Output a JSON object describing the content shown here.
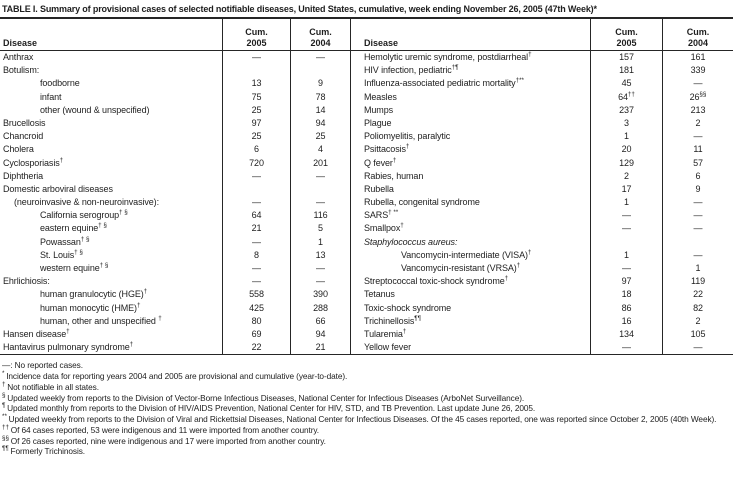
{
  "title": "TABLE I. Summary of provisional cases of selected notifiable diseases, United States, cumulative, week ending November 26, 2005 (47th Week)*",
  "header": {
    "disease_left": "Disease",
    "disease_right": "Disease",
    "cum": "Cum.",
    "year_2005": "2005",
    "year_2004": "2004"
  },
  "table": {
    "left_rows": [
      {
        "n": "Anthrax",
        "s": "",
        "i": 0,
        "it": false,
        "v1": "—",
        "s1": "",
        "v2": "—",
        "s2": ""
      },
      {
        "n": "Botulism:",
        "s": "",
        "i": 0,
        "it": false,
        "v1": "",
        "s1": "",
        "v2": "",
        "s2": ""
      },
      {
        "n": "foodborne",
        "s": "",
        "i": 2,
        "it": false,
        "v1": "13",
        "s1": "",
        "v2": "9",
        "s2": ""
      },
      {
        "n": "infant",
        "s": "",
        "i": 2,
        "it": false,
        "v1": "75",
        "s1": "",
        "v2": "78",
        "s2": ""
      },
      {
        "n": "other (wound & unspecified)",
        "s": "",
        "i": 2,
        "it": false,
        "v1": "25",
        "s1": "",
        "v2": "14",
        "s2": ""
      },
      {
        "n": "Brucellosis",
        "s": "",
        "i": 0,
        "it": false,
        "v1": "97",
        "s1": "",
        "v2": "94",
        "s2": ""
      },
      {
        "n": "Chancroid",
        "s": "",
        "i": 0,
        "it": false,
        "v1": "25",
        "s1": "",
        "v2": "25",
        "s2": ""
      },
      {
        "n": "Cholera",
        "s": "",
        "i": 0,
        "it": false,
        "v1": "6",
        "s1": "",
        "v2": "4",
        "s2": ""
      },
      {
        "n": "Cyclosporiasis",
        "s": "†",
        "i": 0,
        "it": false,
        "v1": "720",
        "s1": "",
        "v2": "201",
        "s2": ""
      },
      {
        "n": "Diphtheria",
        "s": "",
        "i": 0,
        "it": false,
        "v1": "—",
        "s1": "",
        "v2": "—",
        "s2": ""
      },
      {
        "n": "Domestic arboviral diseases",
        "s": "",
        "i": 0,
        "it": false,
        "v1": "",
        "s1": "",
        "v2": "",
        "s2": ""
      },
      {
        "n": "(neuroinvasive & non-neuroinvasive):",
        "s": "",
        "i": 1,
        "it": false,
        "v1": "—",
        "s1": "",
        "v2": "—",
        "s2": ""
      },
      {
        "n": "California serogroup",
        "s": "† §",
        "i": 2,
        "it": false,
        "v1": "64",
        "s1": "",
        "v2": "116",
        "s2": ""
      },
      {
        "n": "eastern equine",
        "s": "† §",
        "i": 2,
        "it": false,
        "v1": "21",
        "s1": "",
        "v2": "5",
        "s2": ""
      },
      {
        "n": "Powassan",
        "s": "† §",
        "i": 2,
        "it": false,
        "v1": "—",
        "s1": "",
        "v2": "1",
        "s2": ""
      },
      {
        "n": "St. Louis",
        "s": "† §",
        "i": 2,
        "it": false,
        "v1": "8",
        "s1": "",
        "v2": "13",
        "s2": ""
      },
      {
        "n": "western equine",
        "s": "† §",
        "i": 2,
        "it": false,
        "v1": "—",
        "s1": "",
        "v2": "—",
        "s2": ""
      },
      {
        "n": "Ehrlichiosis:",
        "s": "",
        "i": 0,
        "it": false,
        "v1": "—",
        "s1": "",
        "v2": "—",
        "s2": ""
      },
      {
        "n": "human granulocytic (HGE)",
        "s": "†",
        "i": 2,
        "it": false,
        "v1": "558",
        "s1": "",
        "v2": "390",
        "s2": ""
      },
      {
        "n": "human monocytic (HME)",
        "s": "†",
        "i": 2,
        "it": false,
        "v1": "425",
        "s1": "",
        "v2": "288",
        "s2": ""
      },
      {
        "n": "human, other and unspecified ",
        "s": "†",
        "i": 2,
        "it": false,
        "v1": "80",
        "s1": "",
        "v2": "66",
        "s2": ""
      },
      {
        "n": "Hansen disease",
        "s": "†",
        "i": 0,
        "it": false,
        "v1": "69",
        "s1": "",
        "v2": "94",
        "s2": ""
      },
      {
        "n": "Hantavirus pulmonary syndrome",
        "s": "†",
        "i": 0,
        "it": false,
        "v1": "22",
        "s1": "",
        "v2": "21",
        "s2": ""
      }
    ],
    "right_rows": [
      {
        "n": "Hemolytic uremic syndrome, postdiarrheal",
        "s": "†",
        "i": 0,
        "it": false,
        "v1": "157",
        "s1": "",
        "v2": "161",
        "s2": ""
      },
      {
        "n": "HIV infection, pediatric",
        "s": "†¶",
        "i": 0,
        "it": false,
        "v1": "181",
        "s1": "",
        "v2": "339",
        "s2": ""
      },
      {
        "n": "Influenza-associated pediatric mortality",
        "s": "†**",
        "i": 0,
        "it": false,
        "v1": "45",
        "s1": "",
        "v2": "—",
        "s2": ""
      },
      {
        "n": "Measles",
        "s": "",
        "i": 0,
        "it": false,
        "v1": "64",
        "s1": "††",
        "v2": "26",
        "s2": "§§"
      },
      {
        "n": "Mumps",
        "s": "",
        "i": 0,
        "it": false,
        "v1": "237",
        "s1": "",
        "v2": "213",
        "s2": ""
      },
      {
        "n": "Plague",
        "s": "",
        "i": 0,
        "it": false,
        "v1": "3",
        "s1": "",
        "v2": "2",
        "s2": ""
      },
      {
        "n": "Poliomyelitis, paralytic",
        "s": "",
        "i": 0,
        "it": false,
        "v1": "1",
        "s1": "",
        "v2": "—",
        "s2": ""
      },
      {
        "n": "Psittacosis",
        "s": "†",
        "i": 0,
        "it": false,
        "v1": "20",
        "s1": "",
        "v2": "11",
        "s2": ""
      },
      {
        "n": "Q fever",
        "s": "†",
        "i": 0,
        "it": false,
        "v1": "129",
        "s1": "",
        "v2": "57",
        "s2": ""
      },
      {
        "n": "Rabies, human",
        "s": "",
        "i": 0,
        "it": false,
        "v1": "2",
        "s1": "",
        "v2": "6",
        "s2": ""
      },
      {
        "n": "Rubella",
        "s": "",
        "i": 0,
        "it": false,
        "v1": "17",
        "s1": "",
        "v2": "9",
        "s2": ""
      },
      {
        "n": "Rubella, congenital syndrome",
        "s": "",
        "i": 0,
        "it": false,
        "v1": "1",
        "s1": "",
        "v2": "—",
        "s2": ""
      },
      {
        "n": "SARS",
        "s": "† **",
        "i": 0,
        "it": false,
        "v1": "—",
        "s1": "",
        "v2": "—",
        "s2": ""
      },
      {
        "n": "Smallpox",
        "s": "†",
        "i": 0,
        "it": false,
        "v1": "—",
        "s1": "",
        "v2": "—",
        "s2": ""
      },
      {
        "n": "Staphylococcus aureus:",
        "s": "",
        "i": 0,
        "it": true,
        "v1": "",
        "s1": "",
        "v2": "",
        "s2": ""
      },
      {
        "n": "Vancomycin-intermediate (VISA)",
        "s": "†",
        "i": 2,
        "it": false,
        "v1": "1",
        "s1": "",
        "v2": "—",
        "s2": ""
      },
      {
        "n": "Vancomycin-resistant (VRSA)",
        "s": "†",
        "i": 2,
        "it": false,
        "v1": "—",
        "s1": "",
        "v2": "1",
        "s2": ""
      },
      {
        "n": "Streptococcal toxic-shock syndrome",
        "s": "†",
        "i": 0,
        "it": false,
        "v1": "97",
        "s1": "",
        "v2": "119",
        "s2": ""
      },
      {
        "n": "Tetanus",
        "s": "",
        "i": 0,
        "it": false,
        "v1": "18",
        "s1": "",
        "v2": "22",
        "s2": ""
      },
      {
        "n": "Toxic-shock syndrome",
        "s": "",
        "i": 0,
        "it": false,
        "v1": "86",
        "s1": "",
        "v2": "82",
        "s2": ""
      },
      {
        "n": "Trichinellosis",
        "s": "¶¶",
        "i": 0,
        "it": false,
        "v1": "16",
        "s1": "",
        "v2": "2",
        "s2": ""
      },
      {
        "n": "Tularemia",
        "s": "†",
        "i": 0,
        "it": false,
        "v1": "134",
        "s1": "",
        "v2": "105",
        "s2": ""
      },
      {
        "n": "Yellow fever",
        "s": "",
        "i": 0,
        "it": false,
        "v1": "—",
        "s1": "",
        "v2": "—",
        "s2": ""
      }
    ]
  },
  "footnotes": [
    {
      "m": "—: ",
      "sup": false,
      "t": "No reported cases."
    },
    {
      "m": "* ",
      "sup": true,
      "t": "Incidence data for reporting years 2004 and 2005 are provisional and cumulative (year-to-date)."
    },
    {
      "m": "† ",
      "sup": true,
      "t": "Not notifiable in all states."
    },
    {
      "m": "§ ",
      "sup": true,
      "t": "Updated weekly from reports to the Division of Vector-Borne Infectious Diseases, National Center for Infectious Diseases (ArboNet Surveillance)."
    },
    {
      "m": "¶ ",
      "sup": true,
      "t": "Updated monthly from reports to the Division of HIV/AIDS Prevention, National Center for HIV, STD, and TB Prevention. Last update June 26, 2005."
    },
    {
      "m": "** ",
      "sup": true,
      "t": "Updated weekly from reports to the Division of Viral and Rickettsial Diseases, National Center for Infectious Diseases. Of the 45 cases reported, one was reported since October 2, 2005 (40th Week)."
    },
    {
      "m": "†† ",
      "sup": true,
      "t": "Of 64 cases reported, 53 were indigenous and 11 were imported from another country."
    },
    {
      "m": "§§ ",
      "sup": true,
      "t": "Of 26 cases reported, nine were indigenous and 17 were imported from another country."
    },
    {
      "m": "¶¶ ",
      "sup": true,
      "t": "Formerly Trichinosis."
    }
  ]
}
